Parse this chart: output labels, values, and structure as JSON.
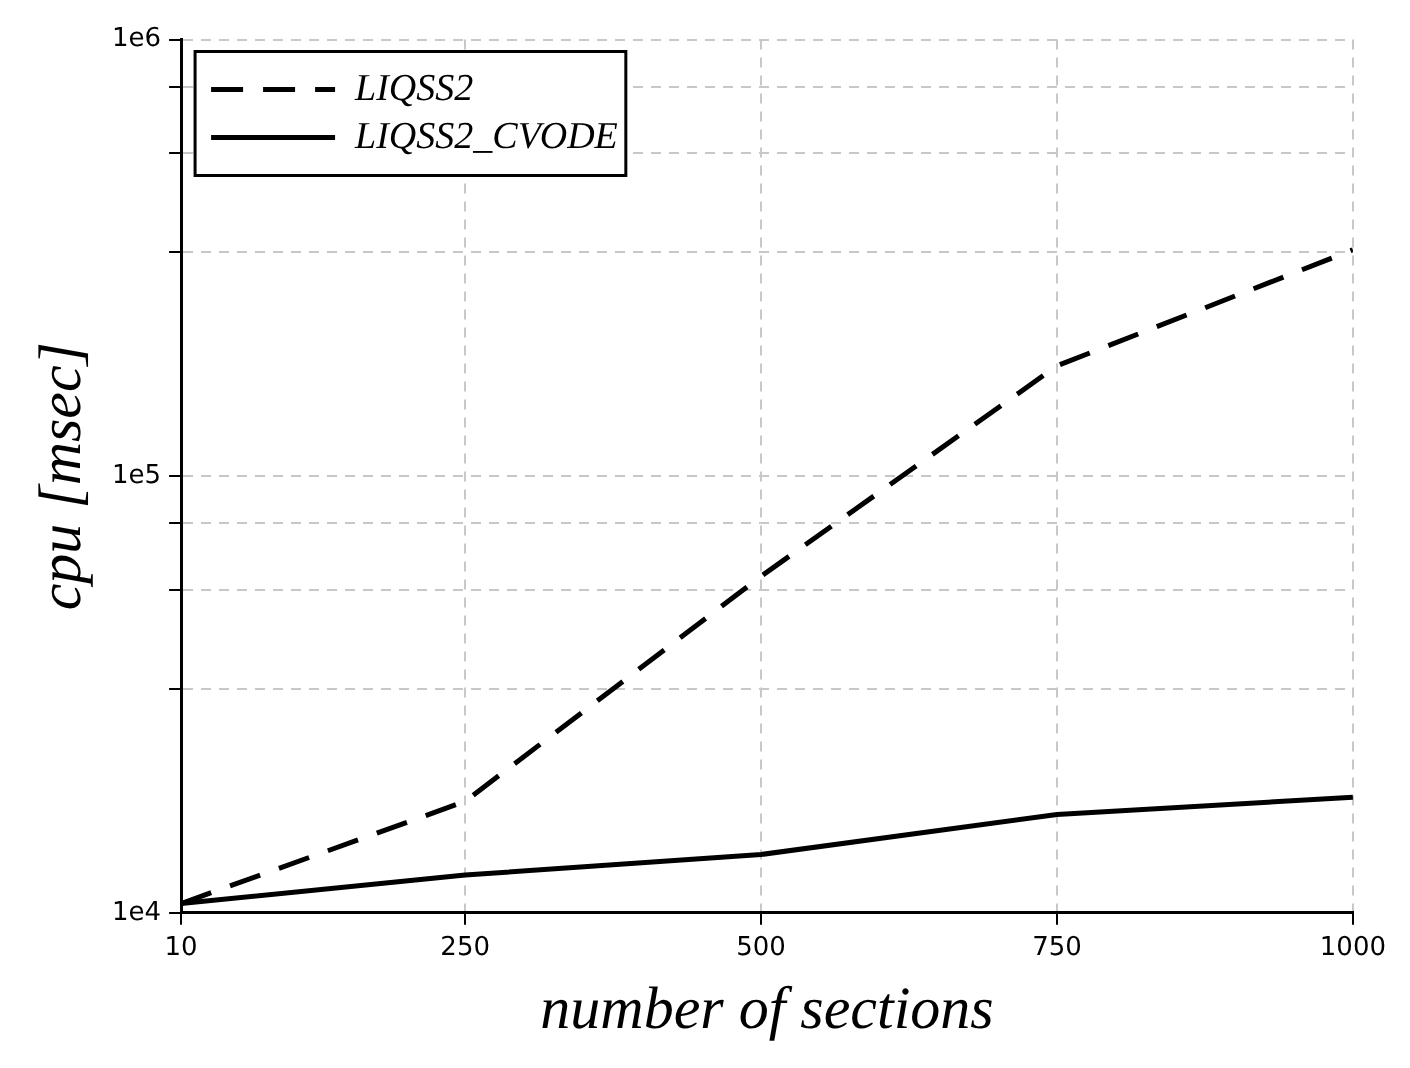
{
  "chart_data": {
    "type": "line",
    "xlabel": "number of sections",
    "ylabel": "cpu [msec]",
    "x": [
      10,
      250,
      500,
      750,
      1000
    ],
    "series": [
      {
        "name": "LIQSS2",
        "color": "#000000",
        "line_style": "dashed",
        "values": [
          10500,
          18000,
          59000,
          179000,
          330000
        ]
      },
      {
        "name": "LIQSS2_CVODE",
        "color": "#000000",
        "line_style": "solid",
        "values": [
          10500,
          12200,
          13600,
          16800,
          18400
        ]
      }
    ],
    "xlim": [
      10,
      1000
    ],
    "xticks": [
      10,
      250,
      500,
      750,
      1000
    ],
    "ylim": [
      10000,
      1000000
    ],
    "yticks": [
      {
        "value": 10000,
        "label": "1e4"
      },
      {
        "value": 32600,
        "label": null
      },
      {
        "value": 55000,
        "label": null
      },
      {
        "value": 78000,
        "label": null
      },
      {
        "value": 100000,
        "label": "1e5"
      },
      {
        "value": 326000,
        "label": null
      },
      {
        "value": 550000,
        "label": null
      },
      {
        "value": 780000,
        "label": null
      },
      {
        "value": 1000000,
        "label": "1e6"
      }
    ],
    "log": "y",
    "grid": true,
    "legend": "top left",
    "marker": "none"
  }
}
